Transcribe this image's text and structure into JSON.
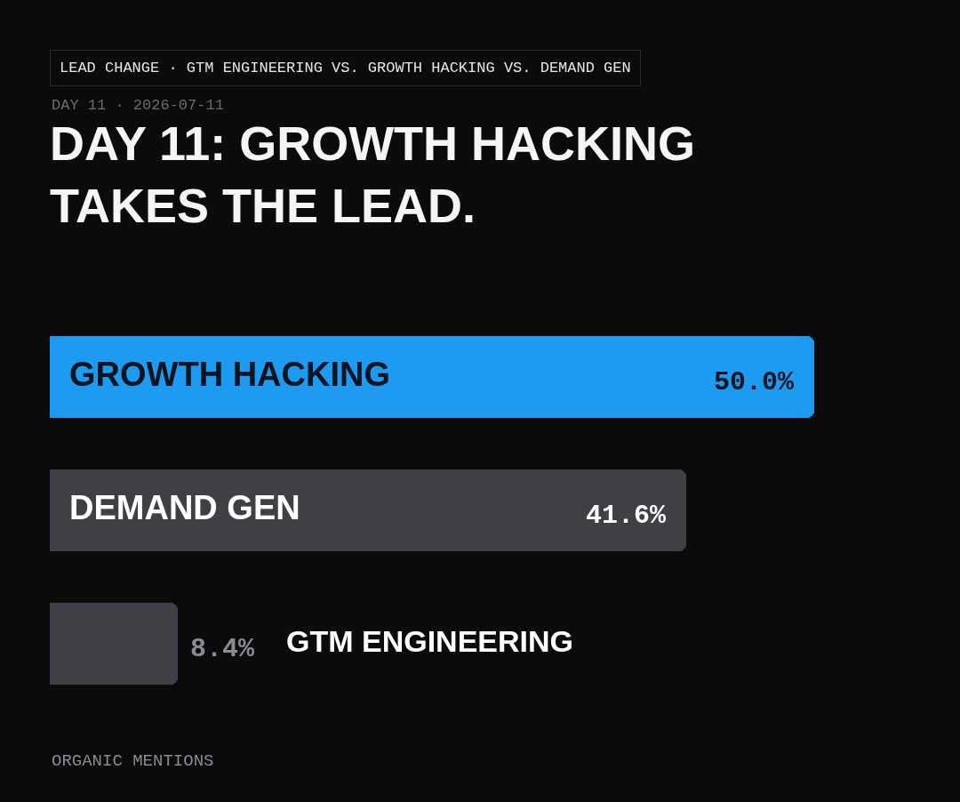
{
  "chart_data": {
    "type": "bar",
    "orientation": "horizontal",
    "title": "DAY 11: GROWTH HACKING TAKES THE LEAD.",
    "subtitle": "DAY 11 · 2026-07-11",
    "annotations": [
      "LEAD CHANGE · GTM ENGINEERING VS. GROWTH HACKING VS. DEMAND GEN",
      "ORGANIC MENTIONS"
    ],
    "categories": [
      "GROWTH HACKING",
      "DEMAND GEN",
      "GTM ENGINEERING"
    ],
    "values": [
      50.0,
      41.6,
      8.4
    ],
    "value_labels": [
      "50.0%",
      "41.6%",
      "8.4%"
    ],
    "colors": [
      "#1d9bf0",
      "#3f3f46",
      "#3f3f46"
    ],
    "legend": false
  }
}
